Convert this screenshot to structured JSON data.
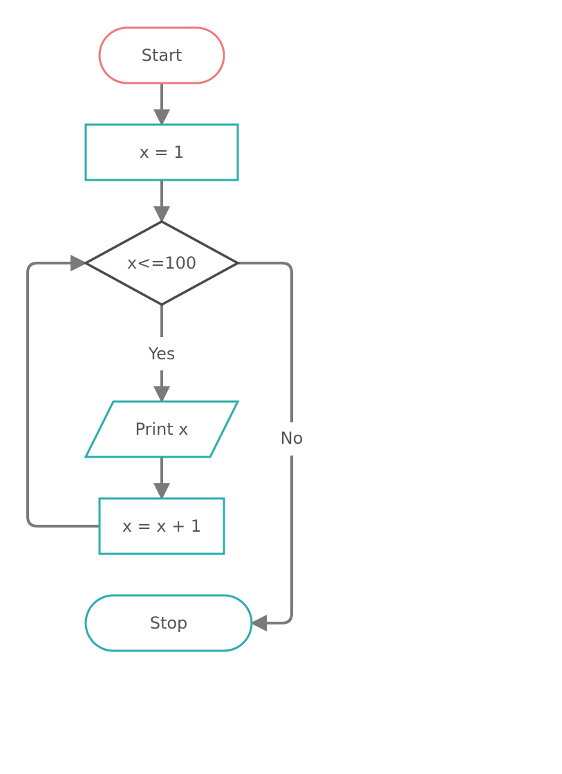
{
  "colors": {
    "background": "#ffffff",
    "start_border": "#ee7a7a",
    "process_border": "#2aadad",
    "decision_border": "#4a4a4a",
    "connector": "#7a7a7a",
    "text": "#555555"
  },
  "nodes": {
    "start": {
      "label": "Start",
      "shape": "terminal"
    },
    "init": {
      "label": "x = 1",
      "shape": "process"
    },
    "condition": {
      "label": "x<=100",
      "shape": "decision"
    },
    "print": {
      "label": "Print x",
      "shape": "input-output"
    },
    "increment": {
      "label": "x = x + 1",
      "shape": "process"
    },
    "stop": {
      "label": "Stop",
      "shape": "terminal"
    }
  },
  "edges": {
    "yes_label": "Yes",
    "no_label": "No"
  }
}
